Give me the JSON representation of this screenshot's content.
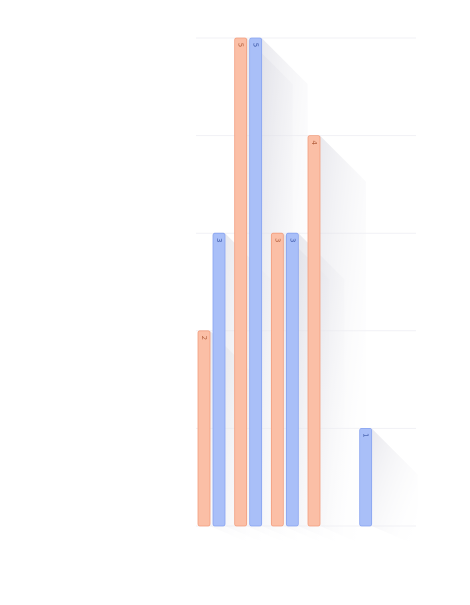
{
  "chart_data": {
    "type": "bar",
    "categories": [
      "",
      "",
      "",
      "",
      "",
      ""
    ],
    "series": [
      {
        "color": "#fbbfa6",
        "stroke": "#f29d7d",
        "label_color": "#b35f3d",
        "values": [
          2,
          5,
          3,
          4,
          0,
          0
        ]
      },
      {
        "color": "#a9bff8",
        "stroke": "#88a3f0",
        "label_color": "#3d58a8",
        "values": [
          3,
          5,
          3,
          0,
          1,
          0
        ]
      }
    ],
    "ylim": [
      0,
      5
    ],
    "grid": true,
    "legend": "none",
    "title": "",
    "xlabel": "",
    "ylabel": ""
  }
}
